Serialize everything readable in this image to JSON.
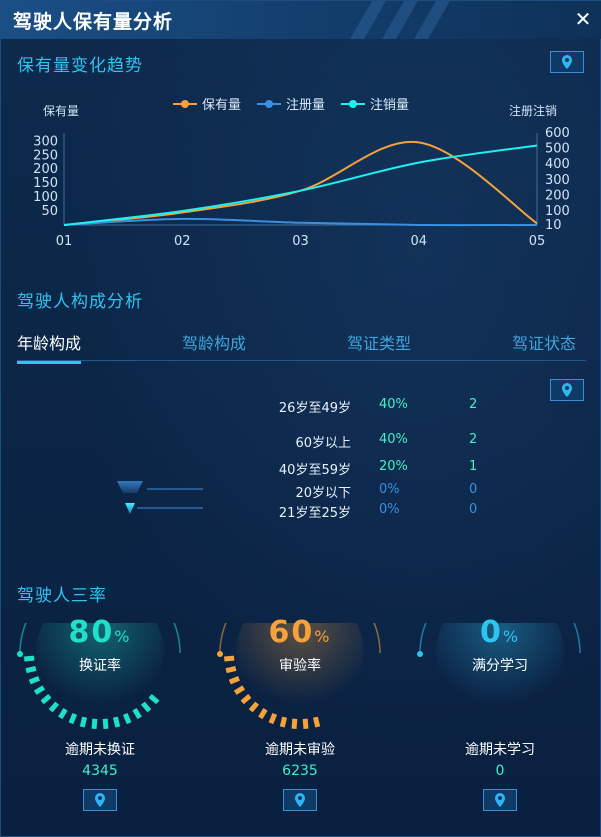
{
  "window": {
    "title": "驾驶人保有量分析",
    "close_symbol": "✕"
  },
  "trend": {
    "section_title": "保有量变化趋势",
    "left_axis_title": "保有量",
    "right_axis_title": "注册注销",
    "legend": [
      "保有量",
      "注册量",
      "注销量"
    ]
  },
  "chart_data": {
    "type": "line",
    "categories": [
      "01",
      "02",
      "03",
      "04",
      "05"
    ],
    "y_left_ticks": [
      50,
      100,
      150,
      200,
      250,
      300
    ],
    "y_right_ticks": [
      10,
      100,
      200,
      300,
      400,
      500,
      600
    ],
    "ylim_left": [
      0,
      330
    ],
    "ylim_right": [
      10,
      600
    ],
    "series": [
      {
        "name": "保有量",
        "axis": "right",
        "color": "#f5a23b",
        "values": [
          10,
          90,
          230,
          540,
          20
        ]
      },
      {
        "name": "注册量",
        "axis": "left",
        "color": "#3b8fe0",
        "values": [
          0,
          22,
          8,
          0,
          0
        ]
      },
      {
        "name": "注销量",
        "axis": "right",
        "color": "#1ff0f0",
        "values": [
          10,
          100,
          230,
          410,
          520
        ]
      }
    ],
    "grid": false
  },
  "composition": {
    "section_title": "驾驶人构成分析",
    "tabs": [
      "年龄构成",
      "驾龄构成",
      "驾证类型",
      "驾证状态"
    ],
    "rows": [
      {
        "name": "26岁至49岁",
        "pct": "40%",
        "count": "2",
        "color": "#3ff0c8"
      },
      {
        "name": "60岁以上",
        "pct": "40%",
        "count": "2",
        "color": "#3ff0c8"
      },
      {
        "name": "40岁至59岁",
        "pct": "20%",
        "count": "1",
        "color": "#3ff0c8"
      },
      {
        "name": "20岁以下",
        "pct": "0%",
        "count": "0",
        "color": "#3b8fe0"
      },
      {
        "name": "21岁至25岁",
        "pct": "0%",
        "count": "0",
        "color": "#3b8fe0"
      }
    ]
  },
  "rates": {
    "section_title": "驾驶人三率",
    "items": [
      {
        "value": "80",
        "unit": "%",
        "label": "换证率",
        "sub": "逾期未换证",
        "count": "4345",
        "percent": 80,
        "color": "#1fe0c8"
      },
      {
        "value": "60",
        "unit": "%",
        "label": "审验率",
        "sub": "逾期未审验",
        "count": "6235",
        "percent": 60,
        "color": "#f5a23b"
      },
      {
        "value": "0",
        "unit": "%",
        "label": "满分学习",
        "sub": "逾期未学习",
        "count": "0",
        "percent": 0,
        "color": "#2fc3f0"
      }
    ]
  },
  "icons": {
    "locate": "location-pin-icon",
    "close": "close-icon"
  }
}
